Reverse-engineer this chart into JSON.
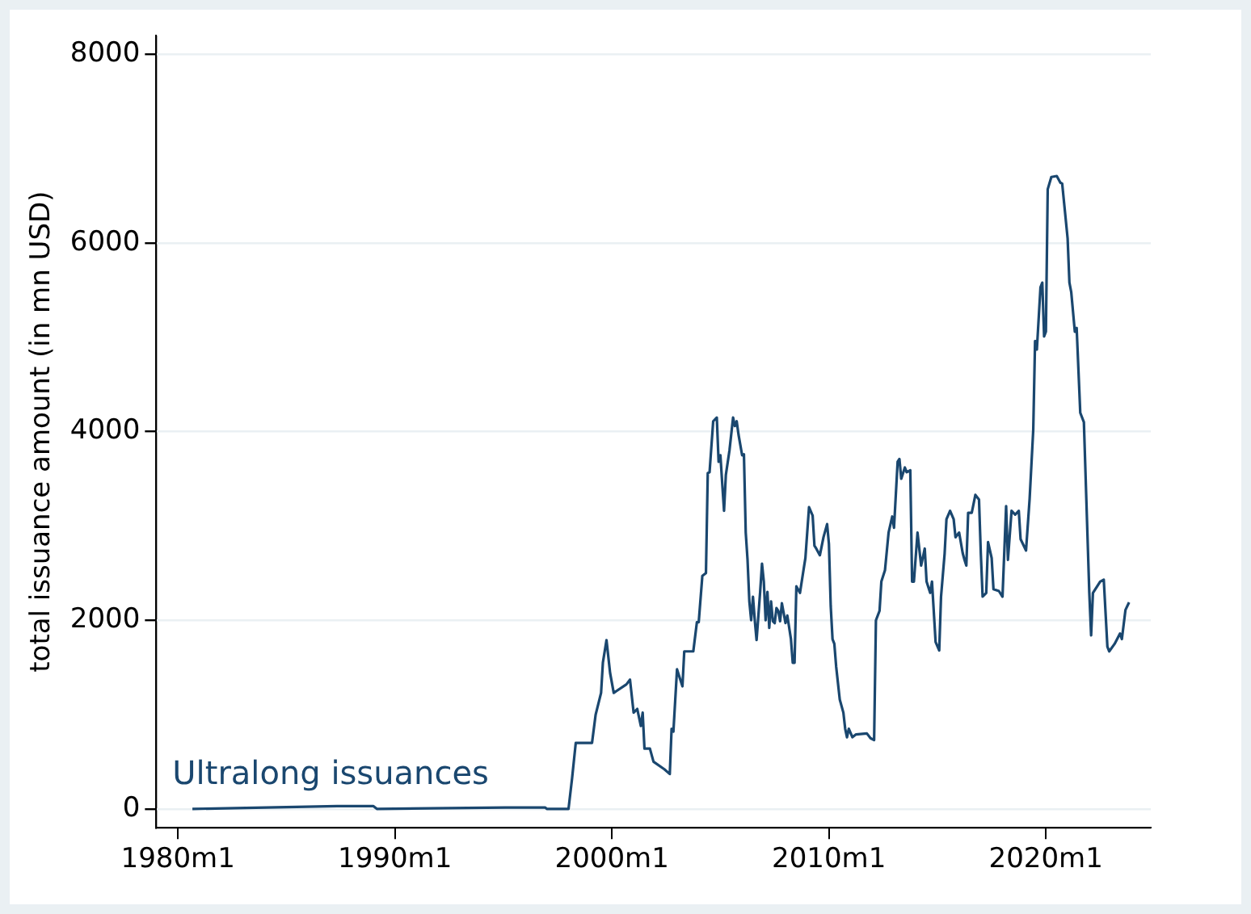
{
  "chart_data": {
    "type": "line",
    "ylabel": "total issuance amount (in mn USD)",
    "xlim": [
      "1979-01",
      "2024-11"
    ],
    "xticks": [
      {
        "value": "1980-01",
        "label": "1980m1"
      },
      {
        "value": "1990-01",
        "label": "1990m1"
      },
      {
        "value": "2000-01",
        "label": "2000m1"
      },
      {
        "value": "2010-01",
        "label": "2010m1"
      },
      {
        "value": "2020-01",
        "label": "2020m1"
      }
    ],
    "ylim": [
      -200,
      8200
    ],
    "yticks": [
      0,
      2000,
      4000,
      6000,
      8000
    ],
    "grid": "y",
    "legend": false,
    "marker": "none",
    "line_style": "solid",
    "series": [
      {
        "name": "Ultralong issuances",
        "color": "#1a476f",
        "x": [
          "1980-09",
          "1987-05",
          "1989-01",
          "1989-03",
          "1995-02",
          "1996-12",
          "1997-01",
          "1998-01",
          "1998-03",
          "1998-05",
          "1999-02",
          "1999-04",
          "1999-07",
          "1999-08",
          "1999-10",
          "1999-12",
          "2000-02",
          "2000-09",
          "2000-11",
          "2001-01",
          "2001-03",
          "2001-05",
          "2001-06",
          "2001-07",
          "2001-10",
          "2001-12",
          "2002-06",
          "2002-09",
          "2002-10",
          "2002-11",
          "2003-01",
          "2003-04",
          "2003-05",
          "2003-10",
          "2003-12",
          "2004-01",
          "2004-03",
          "2004-05",
          "2004-06",
          "2004-07",
          "2004-09",
          "2004-11",
          "2004-12",
          "2005-01",
          "2005-02",
          "2005-03",
          "2005-04",
          "2005-06",
          "2005-08",
          "2005-09",
          "2005-10",
          "2005-11",
          "2006-01",
          "2006-02",
          "2006-03",
          "2006-04",
          "2006-05",
          "2006-06",
          "2006-07",
          "2006-08",
          "2006-09",
          "2006-11",
          "2006-12",
          "2007-01",
          "2007-02",
          "2007-03",
          "2007-04",
          "2007-05",
          "2007-06",
          "2007-07",
          "2007-08",
          "2007-09",
          "2007-10",
          "2007-11",
          "2008-01",
          "2008-02",
          "2008-04",
          "2008-05",
          "2008-06",
          "2008-07",
          "2008-09",
          "2008-11",
          "2008-12",
          "2009-02",
          "2009-04",
          "2009-05",
          "2009-06",
          "2009-08",
          "2009-10",
          "2009-12",
          "2010-01",
          "2010-02",
          "2010-03",
          "2010-04",
          "2010-05",
          "2010-07",
          "2010-09",
          "2010-10",
          "2010-11",
          "2010-12",
          "2011-02",
          "2011-04",
          "2011-10",
          "2011-12",
          "2012-02",
          "2012-03",
          "2012-05",
          "2012-06",
          "2012-08",
          "2012-10",
          "2012-12",
          "2013-01",
          "2013-03",
          "2013-04",
          "2013-05",
          "2013-07",
          "2013-08",
          "2013-10",
          "2013-11",
          "2013-12",
          "2014-02",
          "2014-04",
          "2014-06",
          "2014-07",
          "2014-09",
          "2014-10",
          "2014-12",
          "2015-02",
          "2015-03",
          "2015-05",
          "2015-06",
          "2015-08",
          "2015-10",
          "2015-11",
          "2016-01",
          "2016-03",
          "2016-04",
          "2016-05",
          "2016-06",
          "2016-08",
          "2016-10",
          "2016-12",
          "2017-01",
          "2017-02",
          "2017-04",
          "2017-05",
          "2017-07",
          "2017-08",
          "2017-11",
          "2018-01",
          "2018-03",
          "2018-04",
          "2018-06",
          "2018-08",
          "2018-10",
          "2018-11",
          "2019-02",
          "2019-04",
          "2019-06",
          "2019-07",
          "2019-08",
          "2019-10",
          "2019-11",
          "2019-12",
          "2020-01",
          "2020-02",
          "2020-04",
          "2020-07",
          "2020-09",
          "2020-10",
          "2021-01",
          "2021-02",
          "2021-03",
          "2021-05",
          "2021-06",
          "2021-08",
          "2021-10",
          "2022-01",
          "2022-02",
          "2022-03",
          "2022-07",
          "2022-09",
          "2022-11",
          "2022-12",
          "2023-03",
          "2023-06",
          "2023-07",
          "2023-09",
          "2023-11"
        ],
        "values": [
          0,
          30,
          30,
          0,
          15,
          15,
          0,
          0,
          330,
          700,
          700,
          1000,
          1230,
          1550,
          1790,
          1440,
          1230,
          1320,
          1370,
          1020,
          1060,
          880,
          1020,
          640,
          640,
          500,
          420,
          370,
          850,
          820,
          1480,
          1300,
          1670,
          1670,
          1980,
          1980,
          2470,
          2500,
          3560,
          3570,
          4110,
          4150,
          3680,
          3750,
          3450,
          3160,
          3540,
          3800,
          4150,
          4060,
          4110,
          3970,
          3750,
          3760,
          2930,
          2640,
          2200,
          2000,
          2250,
          2000,
          1790,
          2310,
          2600,
          2410,
          2000,
          2300,
          1920,
          2200,
          1990,
          1970,
          2130,
          2100,
          1990,
          2180,
          1970,
          2050,
          1800,
          1550,
          1550,
          2360,
          2290,
          2540,
          2660,
          3200,
          3110,
          2790,
          2760,
          2690,
          2880,
          3020,
          2810,
          2150,
          1800,
          1750,
          1510,
          1160,
          1020,
          850,
          760,
          850,
          760,
          790,
          800,
          750,
          730,
          2000,
          2100,
          2410,
          2530,
          2930,
          3100,
          2980,
          3680,
          3710,
          3500,
          3620,
          3570,
          3590,
          2410,
          2410,
          2930,
          2580,
          2760,
          2410,
          2290,
          2410,
          1770,
          1680,
          2250,
          2710,
          3070,
          3160,
          3070,
          2880,
          2930,
          2710,
          2640,
          2580,
          3140,
          3140,
          3330,
          3280,
          2710,
          2250,
          2290,
          2830,
          2660,
          2330,
          2310,
          2250,
          3210,
          2640,
          3160,
          3120,
          3160,
          2860,
          2740,
          3290,
          4020,
          4960,
          4870,
          5530,
          5580,
          5010,
          5060,
          6570,
          6700,
          6710,
          6640,
          6630,
          6050,
          5580,
          5480,
          5060,
          5100,
          4200,
          4100,
          2290,
          1840,
          2290,
          2410,
          2430,
          1720,
          1670,
          1750,
          1860,
          1800,
          2110,
          2190
        ]
      }
    ]
  }
}
